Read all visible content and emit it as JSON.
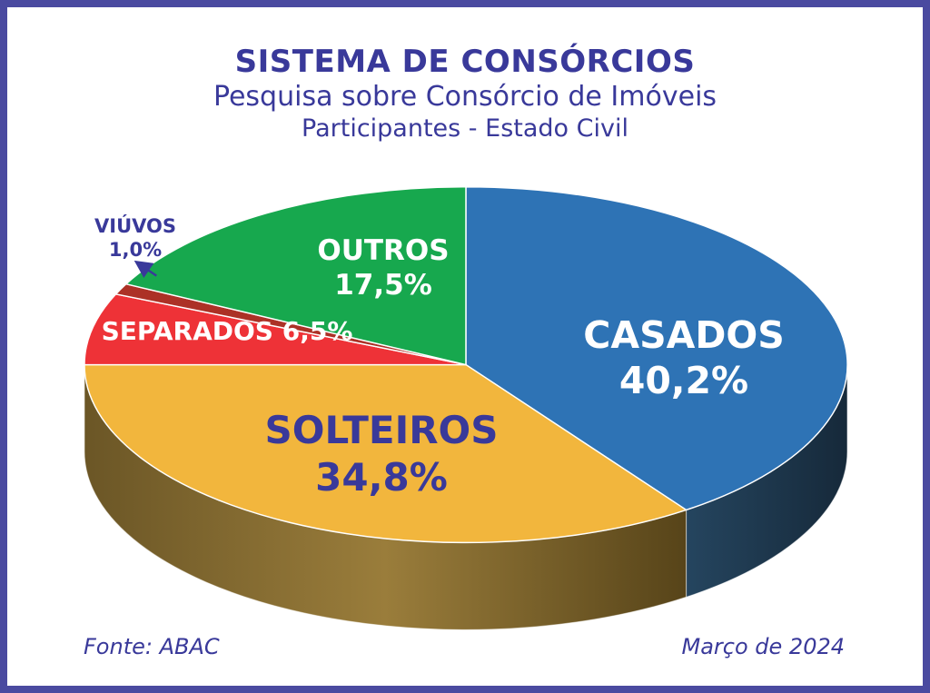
{
  "theme": {
    "frame_border": "#4A4AA0",
    "background": "#FFFFFF",
    "text_indigo": "#39399A",
    "text_white": "#FFFFFF"
  },
  "header": {
    "title": "SISTEMA DE CONSÓRCIOS",
    "subtitle": "Pesquisa sobre Consórcio de Imóveis",
    "subtitle2": "Participantes - Estado Civil"
  },
  "footer": {
    "source": "Fonte: ABAC",
    "date": "Março de 2024"
  },
  "chart_data": {
    "type": "pie",
    "style": "3d",
    "title": "Participantes - Estado Civil",
    "unit": "%",
    "start_position": "12-oclock",
    "direction": "clockwise",
    "slices": [
      {
        "label": "CASADOS",
        "value": 40.2,
        "value_label": "40,2%",
        "color": "#2E73B5",
        "side_colors": [
          "#25455F",
          "#16293A"
        ],
        "label_color": "#FFFFFF"
      },
      {
        "label": "SOLTEIROS",
        "value": 34.8,
        "value_label": "34,8%",
        "color": "#F2B63D",
        "side_colors": [
          "#6B5626",
          "#9A7D3B",
          "#574419"
        ],
        "label_color": "#39399A"
      },
      {
        "label": "SEPARADOS",
        "value": 6.5,
        "value_label": "6,5%",
        "color": "#EE3237",
        "label_color": "#FFFFFF"
      },
      {
        "label": "VIÚVOS",
        "value": 1.0,
        "value_label": "1,0%",
        "color": "#AC3126",
        "label_color": "#39399A"
      },
      {
        "label": "OUTROS",
        "value": 17.5,
        "value_label": "17,5%",
        "color": "#17A84E",
        "label_color": "#FFFFFF"
      }
    ]
  }
}
